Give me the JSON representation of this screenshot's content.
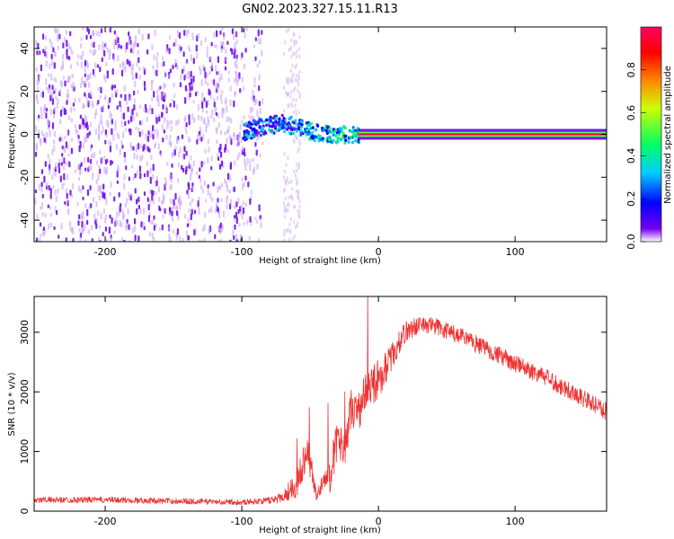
{
  "title": "GN02.2023.327.15.11.R13",
  "colors": {
    "background": "#ffffff",
    "line": "#ee3333",
    "frame": "#000000",
    "noise": "#6f11ee"
  },
  "chart_data": [
    {
      "type": "heatmap",
      "xlabel": "Height of straight line (km)",
      "ylabel": "Frequency (Hz)",
      "xlim": [
        -252,
        167
      ],
      "ylim": [
        -50,
        50
      ],
      "x_ticks": [
        -200,
        -100,
        0,
        100
      ],
      "y_ticks": [
        -40,
        -20,
        0,
        20,
        40
      ],
      "colorbar": {
        "label": "Normalized spectral amplitude",
        "range": [
          0,
          1
        ],
        "ticks": [
          "0.0",
          "0.2",
          "0.4",
          "0.6",
          "0.8"
        ],
        "colormap": [
          "#ffffff",
          "#7700ee",
          "#0000ff",
          "#00ccff",
          "#00ff66",
          "#ccff00",
          "#ff8800",
          "#ff0000",
          "#ff0066"
        ]
      },
      "features": [
        {
          "name": "broadband noise",
          "x_range": [
            -252,
            -85
          ],
          "y_range": [
            -50,
            50
          ],
          "amplitude": 0.1
        },
        {
          "name": "sparse noise band",
          "x_range": [
            -70,
            -58
          ],
          "y_range": [
            -50,
            50
          ],
          "amplitude": 0.05
        },
        {
          "name": "emerging signal",
          "x_range": [
            -100,
            -15
          ],
          "y_center": [
            2,
            6,
            1,
            0
          ],
          "amplitude": 0.3
        },
        {
          "name": "stable carrier",
          "x_range": [
            -20,
            167
          ],
          "y_center": 0,
          "amplitude": 0.95
        }
      ]
    },
    {
      "type": "line",
      "xlabel": "Height of straight line (km)",
      "ylabel": "SNR (10 * v/v)",
      "xlim": [
        -252,
        167
      ],
      "ylim": [
        0,
        3600
      ],
      "x_ticks": [
        -200,
        -100,
        0,
        100
      ],
      "y_ticks": [
        0,
        1000,
        2000,
        3000
      ],
      "series": [
        {
          "x": [
            -252,
            -200,
            -150,
            -100,
            -80,
            -70,
            -60,
            -52,
            -45,
            -40,
            -35,
            -30,
            -25,
            -20,
            -15,
            -10,
            -5,
            0,
            5,
            10,
            15,
            20,
            30,
            40,
            50,
            60,
            80,
            100,
            120,
            140,
            167
          ],
          "y": [
            200,
            200,
            180,
            160,
            190,
            260,
            520,
            1100,
            250,
            550,
            700,
            1300,
            1050,
            1800,
            1700,
            2050,
            2150,
            2300,
            2450,
            2650,
            2850,
            3050,
            3150,
            3150,
            3050,
            2950,
            2750,
            2500,
            2300,
            2050,
            1700
          ],
          "noise": [
            100,
            100,
            100,
            90,
            110,
            200,
            500,
            600,
            200,
            400,
            650,
            700,
            600,
            650,
            700,
            650,
            700,
            700,
            550,
            450,
            400,
            350,
            300,
            300,
            300,
            300,
            300,
            300,
            300,
            300,
            300
          ]
        }
      ]
    }
  ]
}
